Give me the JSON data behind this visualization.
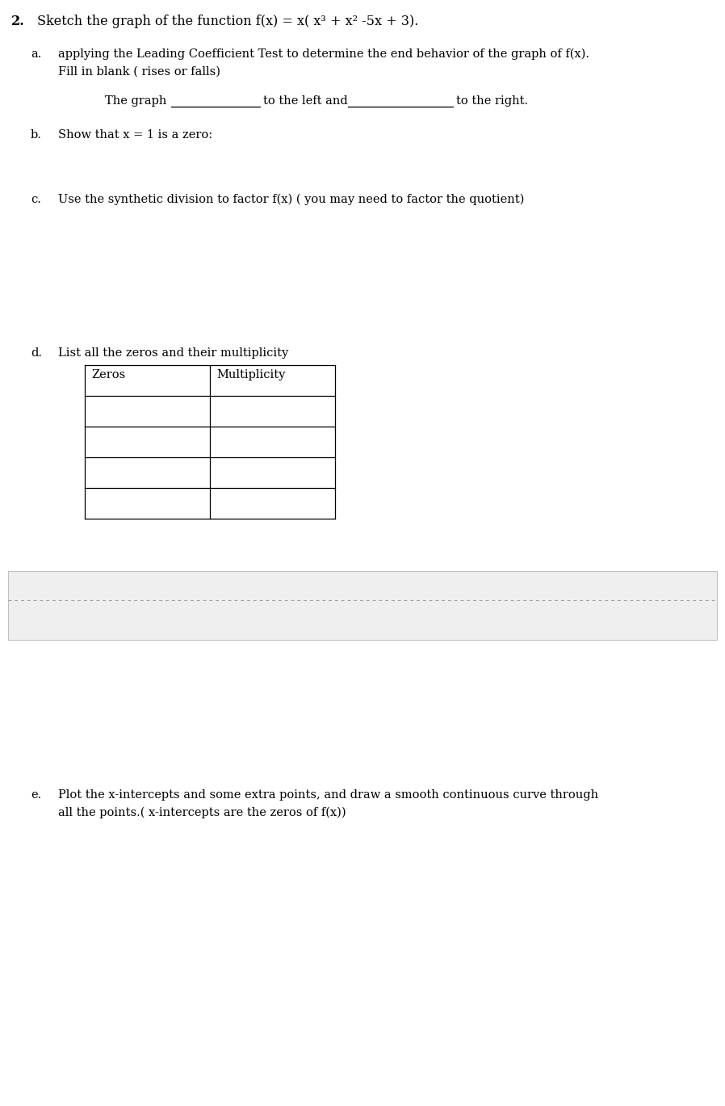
{
  "title_number": "2.",
  "title_text": "Sketch the graph of the function f(x) = x( x³ + x² -5x + 3).",
  "part_a_label": "a.",
  "part_a_line1": "applying the Leading Coefficient Test to determine the end behavior of the graph of f(x).",
  "part_a_line2": "Fill in blank ( rises or falls)",
  "part_a_blank_line_prefix": "The graph",
  "part_a_blank_line_mid": "to the left and",
  "part_a_blank_line_end": "to the right.",
  "part_b_label": "b.",
  "part_b_text": "Show that x = 1 is a zero:",
  "part_c_label": "c.",
  "part_c_text": "Use the synthetic division to factor f(x) ( you may need to factor the quotient)",
  "part_d_label": "d.",
  "part_d_text": "List all the zeros and their multiplicity",
  "table_col1": "Zeros",
  "table_col2": "Multiplicity",
  "table_data_rows": 4,
  "part_e_label": "e.",
  "part_e_line1": "Plot the x-intercepts and some extra points, and draw a smooth continuous curve through",
  "part_e_line2": "all the points.( x-intercepts are the zeros of f(x))",
  "bg_color": "#ffffff",
  "text_color": "#000000",
  "gray_color": "#efefef",
  "gray_border_color": "#c0c0c0",
  "dot_line_color": "#999999",
  "fs_title": 11.5,
  "fs_body": 10.5
}
